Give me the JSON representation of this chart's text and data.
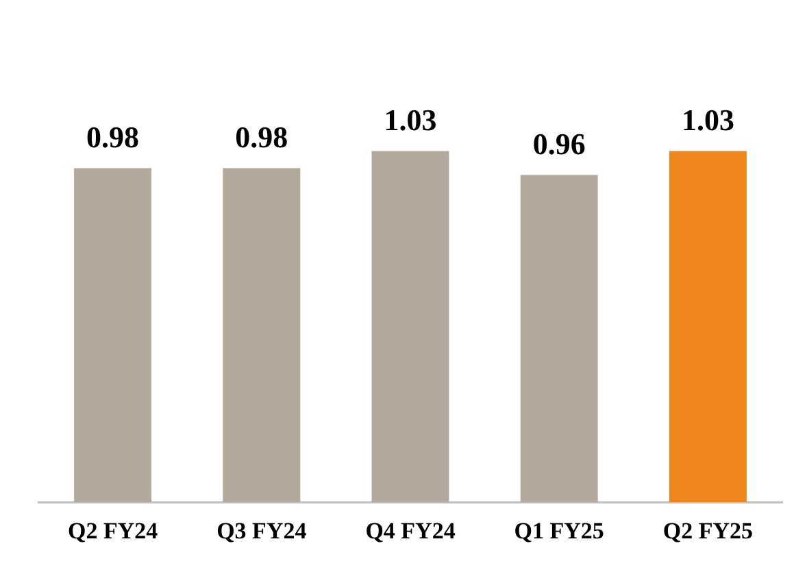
{
  "chart_data": {
    "type": "bar",
    "categories": [
      "Q2 FY24",
      "Q3 FY24",
      "Q4 FY24",
      "Q1 FY25",
      "Q2 FY25"
    ],
    "values": [
      0.98,
      0.98,
      1.03,
      0.96,
      1.03
    ],
    "colors": [
      "#b3a89c",
      "#b3a89c",
      "#b3a89c",
      "#b3a89c",
      "#f0861e"
    ],
    "data_labels": true,
    "grid": false,
    "legend": false,
    "tick_labels": "x"
  }
}
